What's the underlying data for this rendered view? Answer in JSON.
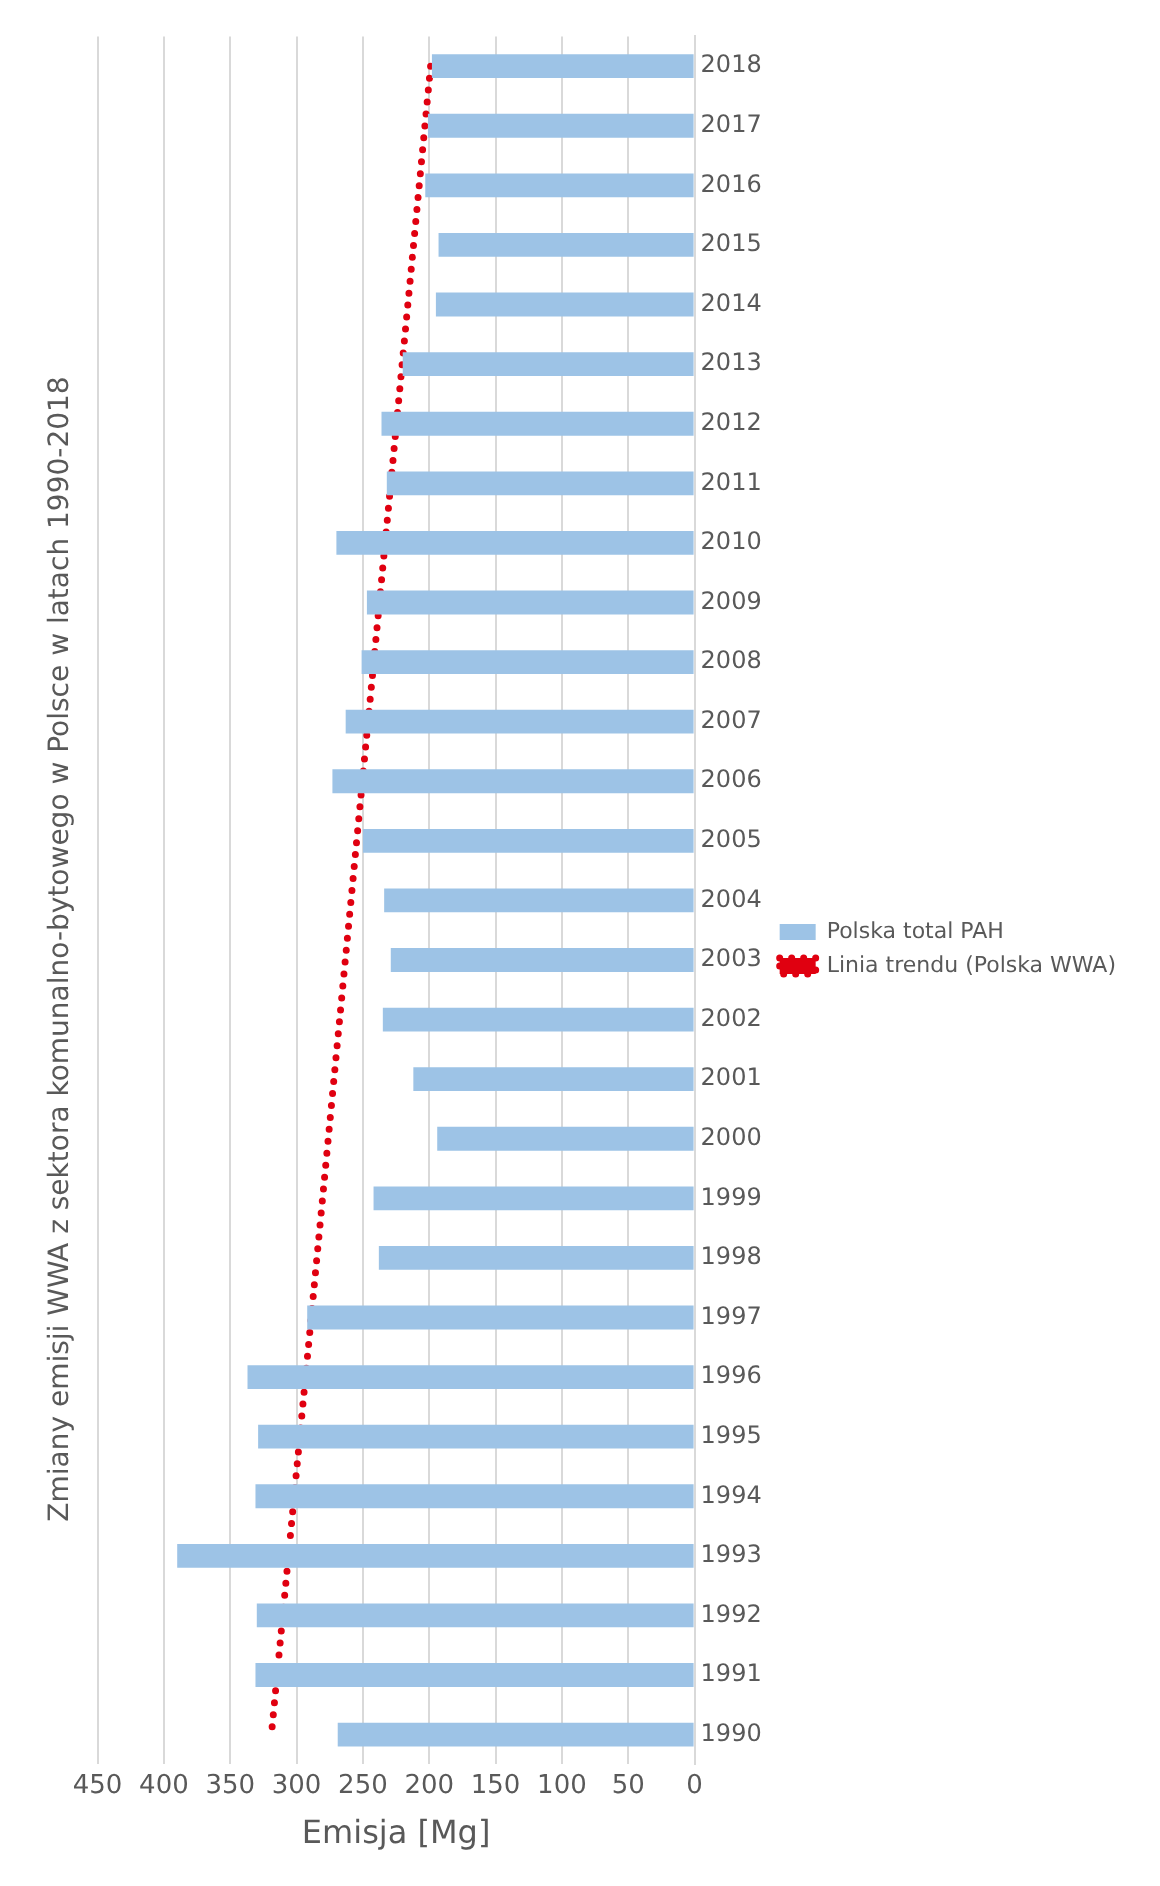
{
  "chart_data": {
    "type": "bar",
    "orientation": "horizontal",
    "title": "Zmiany emisji WWA z sektora komunalno-bytowego w Polsce w latach 1990-2018",
    "xlabel": "Emisja [Mg]",
    "categories": [
      "2018",
      "2017",
      "2016",
      "2015",
      "2014",
      "2013",
      "2012",
      "2011",
      "2010",
      "2009",
      "2008",
      "2007",
      "2006",
      "2005",
      "2004",
      "2003",
      "2002",
      "2001",
      "2000",
      "1999",
      "1998",
      "1997",
      "1996",
      "1995",
      "1994",
      "1993",
      "1992",
      "1991",
      "1990"
    ],
    "series": [
      {
        "name": "Polska total PAH",
        "color": "#9dc3e6",
        "values": [
          198,
          201,
          203,
          193,
          195,
          220,
          236,
          232,
          270,
          247,
          251,
          263,
          273,
          250,
          234,
          229,
          235,
          212,
          194,
          242,
          238,
          292,
          337,
          329,
          331,
          390,
          330,
          331,
          269
        ]
      },
      {
        "name": "Linia trendu (Polska WWA)",
        "type": "line",
        "color": "#e00010",
        "line_style": "dotted",
        "values": [
          199,
          null,
          null,
          null,
          null,
          null,
          null,
          null,
          null,
          null,
          null,
          null,
          null,
          null,
          null,
          null,
          null,
          null,
          null,
          null,
          null,
          null,
          null,
          null,
          null,
          null,
          null,
          null,
          319
        ]
      }
    ],
    "xlim": [
      450,
      0
    ],
    "xticks": [
      0,
      50,
      100,
      150,
      200,
      250,
      300,
      350,
      400,
      450
    ],
    "grid": "x",
    "legend": "right"
  }
}
